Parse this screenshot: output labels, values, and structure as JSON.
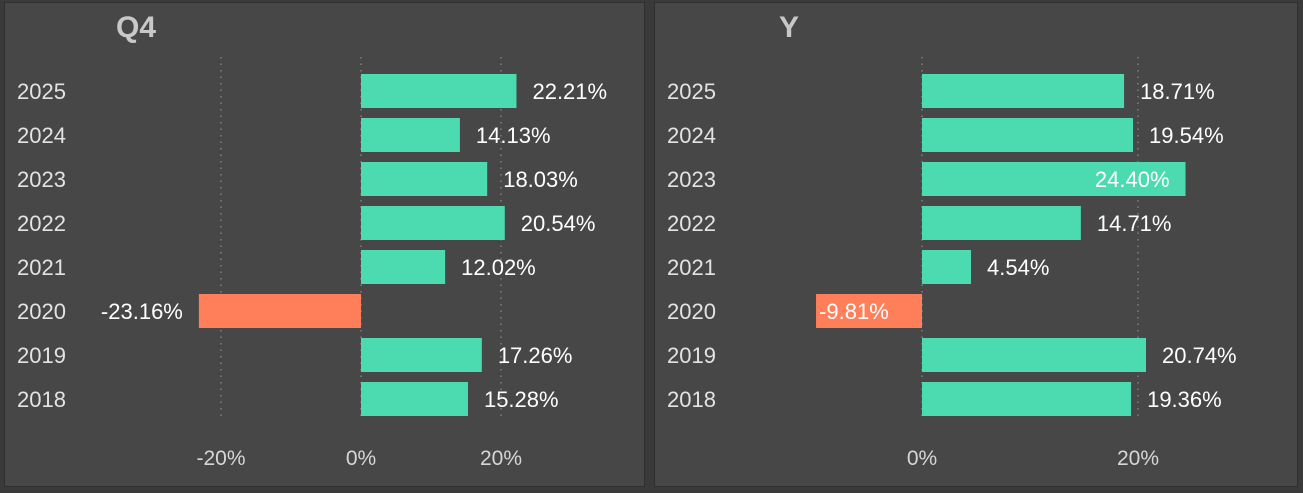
{
  "colors": {
    "positive": "#4cdbb0",
    "negative": "#ff7f5b"
  },
  "chart_data": [
    {
      "type": "bar",
      "orientation": "horizontal",
      "title": "Q4",
      "categories": [
        "2025",
        "2024",
        "2023",
        "2022",
        "2021",
        "2020",
        "2019",
        "2018"
      ],
      "values": [
        22.21,
        14.13,
        18.03,
        20.54,
        12.02,
        -23.16,
        17.26,
        15.28
      ],
      "value_labels": [
        "22.21%",
        "14.13%",
        "18.03%",
        "20.54%",
        "12.02%",
        "-23.16%",
        "17.26%",
        "15.28%"
      ],
      "x_ticks": [
        -20,
        0,
        20
      ],
      "x_tick_labels": [
        "-20%",
        "0%",
        "20%"
      ],
      "xlim": [
        -28,
        33
      ],
      "grid": true
    },
    {
      "type": "bar",
      "orientation": "horizontal",
      "title": "Y",
      "categories": [
        "2025",
        "2024",
        "2023",
        "2022",
        "2021",
        "2020",
        "2019",
        "2018"
      ],
      "values": [
        18.71,
        19.54,
        24.4,
        14.71,
        4.54,
        -9.81,
        20.74,
        19.36
      ],
      "value_labels": [
        "18.71%",
        "19.54%",
        "24.40%",
        "14.71%",
        "4.54%",
        "-9.81%",
        "20.74%",
        "19.36%"
      ],
      "x_ticks": [
        0,
        20
      ],
      "x_tick_labels": [
        "0%",
        "20%"
      ],
      "xlim": [
        -12,
        28
      ],
      "grid": true
    }
  ]
}
